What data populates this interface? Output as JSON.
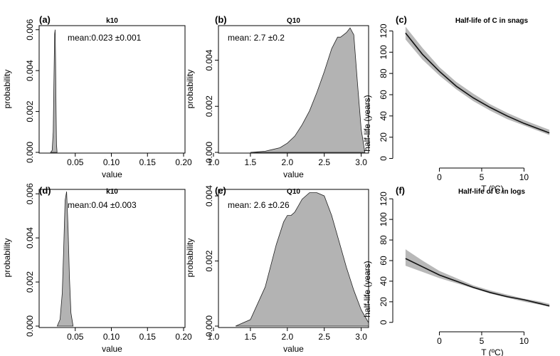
{
  "chart_data": [
    {
      "id": "a",
      "type": "area",
      "panel_label": "(a)",
      "title": "k10",
      "xlabel": "value",
      "ylabel": "probability",
      "xlim": [
        0.0,
        0.2
      ],
      "ylim": [
        0.0,
        0.0062
      ],
      "xticks": [
        0.05,
        0.1,
        0.15,
        0.2
      ],
      "xtick_labels": [
        "0.05",
        "0.10",
        "0.15",
        "0.20"
      ],
      "yticks": [
        0.0,
        0.002,
        0.004,
        0.006
      ],
      "ytick_labels": [
        "0.000",
        "0.002",
        "0.004",
        "0.006"
      ],
      "annotation": "mean:0.023 ±0.001",
      "x": [
        0.016,
        0.018,
        0.0195,
        0.0205,
        0.0215,
        0.0222,
        0.0228,
        0.0234,
        0.024,
        0.0248
      ],
      "y": [
        0.0,
        0.0001,
        0.001,
        0.0035,
        0.0058,
        0.006,
        0.0045,
        0.002,
        0.0004,
        0.0
      ]
    },
    {
      "id": "b",
      "type": "area",
      "panel_label": "(b)",
      "title": "Q10",
      "xlabel": "value",
      "ylabel": "probability",
      "xlim": [
        1.0,
        3.1
      ],
      "ylim": [
        0.0,
        0.0055
      ],
      "xticks": [
        1.0,
        1.5,
        2.0,
        2.5,
        3.0
      ],
      "xtick_labels": [
        "1.0",
        "1.5",
        "2.0",
        "2.5",
        "3.0"
      ],
      "yticks": [
        0.0,
        0.002,
        0.004
      ],
      "ytick_labels": [
        "0.000",
        "0.002",
        "0.004"
      ],
      "annotation": "mean: 2.7 ±0.2",
      "x": [
        1.5,
        1.7,
        1.9,
        2.0,
        2.1,
        2.2,
        2.3,
        2.4,
        2.5,
        2.6,
        2.68,
        2.72,
        2.8,
        2.85,
        2.9,
        2.95,
        3.0,
        3.05
      ],
      "y": [
        0.0,
        5e-05,
        0.0002,
        0.0004,
        0.0007,
        0.0012,
        0.0018,
        0.0026,
        0.0035,
        0.0045,
        0.005,
        0.005,
        0.0052,
        0.0054,
        0.0051,
        0.003,
        0.001,
        0.0
      ]
    },
    {
      "id": "c",
      "type": "line",
      "panel_label": "(c)",
      "title": "Half-life of C in snags",
      "xlabel": "T (ºC)",
      "ylabel": "half-life (years)",
      "xlim": [
        -5,
        14
      ],
      "ylim": [
        -5,
        125
      ],
      "xticks": [
        0,
        5,
        10
      ],
      "xtick_labels": [
        "0",
        "5",
        "10"
      ],
      "yticks": [
        0,
        20,
        40,
        60,
        80,
        100,
        120
      ],
      "ytick_labels": [
        "0",
        "20",
        "40",
        "60",
        "80",
        "100",
        "120"
      ],
      "x": [
        -4,
        -2,
        0,
        2,
        4,
        6,
        8,
        10,
        12,
        13
      ],
      "y": [
        118,
        98,
        82,
        68,
        57,
        48,
        40,
        33,
        27,
        24
      ],
      "band_lower": [
        112,
        93,
        78,
        65,
        54,
        45,
        37,
        31,
        25,
        22
      ],
      "band_upper": [
        124,
        104,
        86,
        72,
        61,
        51,
        43,
        36,
        30,
        27
      ]
    },
    {
      "id": "d",
      "type": "area",
      "panel_label": "(d)",
      "title": "k10",
      "xlabel": "value",
      "ylabel": "probability",
      "xlim": [
        0.0,
        0.2
      ],
      "ylim": [
        0.0,
        0.0062
      ],
      "xticks": [
        0.05,
        0.1,
        0.15,
        0.2
      ],
      "xtick_labels": [
        "0.05",
        "0.10",
        "0.15",
        "0.20"
      ],
      "yticks": [
        0.0,
        0.002,
        0.004,
        0.006
      ],
      "ytick_labels": [
        "0.000",
        "0.002",
        "0.004",
        "0.006"
      ],
      "annotation": "mean:0.04 ±0.003",
      "x": [
        0.025,
        0.029,
        0.032,
        0.034,
        0.036,
        0.038,
        0.04,
        0.042,
        0.044,
        0.047
      ],
      "y": [
        0.0,
        0.0003,
        0.0015,
        0.0035,
        0.0057,
        0.0061,
        0.0045,
        0.0022,
        0.0006,
        0.0
      ]
    },
    {
      "id": "e",
      "type": "area",
      "panel_label": "(e)",
      "title": "Q10",
      "xlabel": "value",
      "ylabel": "probability",
      "xlim": [
        1.0,
        3.1
      ],
      "ylim": [
        0.0,
        0.0042
      ],
      "xticks": [
        1.0,
        1.5,
        2.0,
        2.5,
        3.0
      ],
      "xtick_labels": [
        "1.0",
        "1.5",
        "2.0",
        "2.5",
        "3.0"
      ],
      "yticks": [
        0.0,
        0.002,
        0.004
      ],
      "ytick_labels": [
        "0.000",
        "0.002",
        "0.004"
      ],
      "annotation": "mean: 2.6 ±0.26",
      "x": [
        1.3,
        1.5,
        1.7,
        1.85,
        1.95,
        2.0,
        2.05,
        2.1,
        2.15,
        2.2,
        2.3,
        2.4,
        2.5,
        2.6,
        2.7,
        2.8,
        2.9,
        3.0,
        3.1
      ],
      "y": [
        0.0,
        0.0002,
        0.0012,
        0.0025,
        0.0032,
        0.0034,
        0.0034,
        0.0035,
        0.0037,
        0.0039,
        0.0041,
        0.0041,
        0.004,
        0.0034,
        0.0026,
        0.0018,
        0.0011,
        0.0005,
        0.0001
      ]
    },
    {
      "id": "f",
      "type": "line",
      "panel_label": "(f)",
      "title": "Half-life of C in logs",
      "xlabel": "T (ºC)",
      "ylabel": "half-life (years)",
      "xlim": [
        -5,
        14
      ],
      "ylim": [
        -5,
        125
      ],
      "xticks": [
        0,
        5,
        10
      ],
      "xtick_labels": [
        "0",
        "5",
        "10"
      ],
      "yticks": [
        0,
        20,
        40,
        60,
        80,
        100,
        120
      ],
      "ytick_labels": [
        "0",
        "20",
        "40",
        "60",
        "80",
        "100",
        "120"
      ],
      "x": [
        -4,
        -2,
        0,
        2,
        4,
        6,
        8,
        10,
        12,
        13
      ],
      "y": [
        62,
        54,
        46,
        40,
        34,
        29,
        25,
        22,
        18,
        16
      ],
      "band_lower": [
        55,
        49,
        43,
        38,
        33,
        28,
        24,
        20,
        17,
        15
      ],
      "band_upper": [
        71,
        60,
        50,
        43,
        36,
        31,
        27,
        23,
        20,
        18
      ]
    }
  ]
}
